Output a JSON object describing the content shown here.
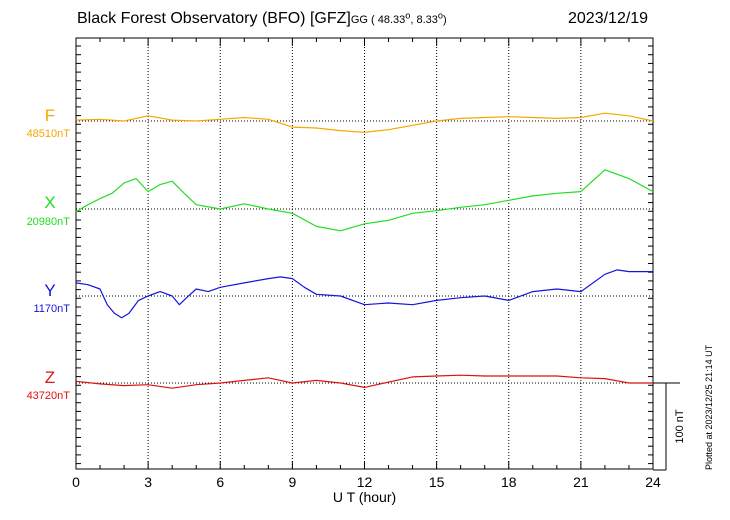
{
  "header": {
    "title": "Black Forest Observatory (BFO)  [GFZ]",
    "coords_prefix": "GG ( 48.33",
    "coords_mid": ",   8.33",
    "coords_suffix": ")",
    "date": "2023/12/19"
  },
  "footer": {
    "plotted": "Plotted at 2023/12/25 21:14 UT"
  },
  "chart_data": {
    "type": "line",
    "xlabel": "U T (hour)",
    "xlim": [
      0,
      24
    ],
    "xticks": [
      "0",
      "3",
      "6",
      "9",
      "12",
      "15",
      "18",
      "21",
      "24"
    ],
    "grid": true,
    "scale_bar": {
      "value": 100,
      "label": "100 nT"
    },
    "series": [
      {
        "name": "F",
        "baseline_label": "48510nT",
        "baseline": 48510,
        "color": "#f5a800",
        "x": [
          0,
          1,
          2,
          3,
          4,
          5,
          6,
          7,
          8,
          9,
          10,
          11,
          12,
          13,
          14,
          15,
          16,
          17,
          18,
          19,
          20,
          21,
          22,
          23,
          24
        ],
        "y": [
          48511,
          48512,
          48510,
          48516,
          48511,
          48510,
          48512,
          48514,
          48512,
          48503,
          48502,
          48499,
          48497,
          48500,
          48505,
          48510,
          48513,
          48514,
          48515,
          48514,
          48513,
          48514,
          48519,
          48516,
          48510
        ]
      },
      {
        "name": "X",
        "baseline_label": "20980nT",
        "baseline": 20980,
        "color": "#22dd22",
        "x": [
          0,
          0.5,
          1,
          1.5,
          2,
          2.5,
          3,
          3.5,
          4,
          4.5,
          5,
          6,
          7,
          8,
          9,
          10,
          11,
          12,
          13,
          14,
          15,
          16,
          17,
          18,
          19,
          20,
          21,
          22,
          22.5,
          23,
          24
        ],
        "y": [
          20977,
          20985,
          20992,
          20998,
          21010,
          21015,
          21000,
          21008,
          21012,
          20998,
          20985,
          20980,
          20986,
          20980,
          20975,
          20960,
          20955,
          20963,
          20967,
          20975,
          20978,
          20982,
          20985,
          20990,
          20995,
          20998,
          21000,
          21025,
          21020,
          21015,
          21000
        ]
      },
      {
        "name": "Y",
        "baseline_label": "1170nT",
        "baseline": 1170,
        "color": "#1515dd",
        "x": [
          0,
          0.5,
          1,
          1.3,
          1.6,
          1.9,
          2.2,
          2.6,
          3,
          3.5,
          4,
          4.3,
          4.6,
          5,
          5.5,
          6,
          7,
          8,
          8.5,
          9,
          9.5,
          10,
          11,
          12,
          13,
          14,
          15,
          16,
          17,
          18,
          19,
          20,
          21,
          22,
          22.5,
          23,
          24
        ],
        "y": [
          1185,
          1183,
          1178,
          1160,
          1150,
          1145,
          1150,
          1165,
          1170,
          1175,
          1170,
          1160,
          1168,
          1178,
          1175,
          1180,
          1185,
          1190,
          1192,
          1190,
          1180,
          1172,
          1170,
          1160,
          1162,
          1160,
          1165,
          1168,
          1170,
          1165,
          1175,
          1178,
          1175,
          1195,
          1200,
          1198,
          1198
        ]
      },
      {
        "name": "Z",
        "baseline_label": "43720nT",
        "baseline": 43720,
        "color": "#dd1111",
        "x": [
          0,
          1,
          2,
          3,
          4,
          5,
          6,
          7,
          8,
          9,
          10,
          11,
          12,
          13,
          14,
          15,
          16,
          17,
          18,
          19,
          20,
          21,
          22,
          23,
          24
        ],
        "y": [
          43722,
          43719,
          43717,
          43718,
          43714,
          43718,
          43720,
          43723,
          43726,
          43720,
          43723,
          43720,
          43715,
          43721,
          43727,
          43728,
          43729,
          43728,
          43728,
          43728,
          43728,
          43726,
          43725,
          43720,
          43720
        ]
      }
    ]
  }
}
